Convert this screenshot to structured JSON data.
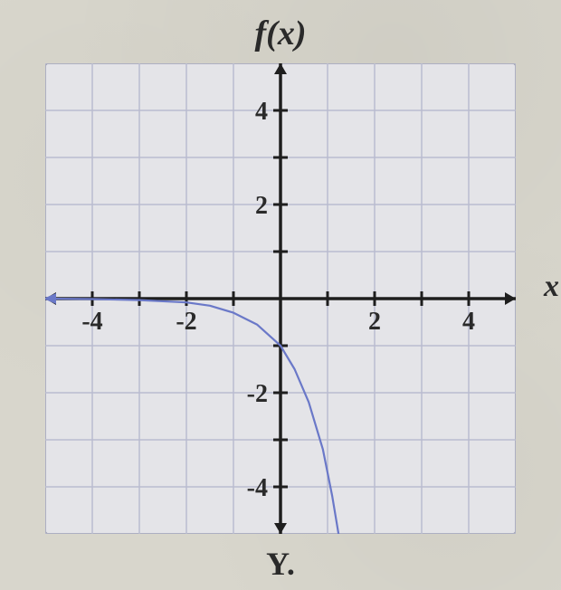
{
  "chart": {
    "type": "line",
    "title": "f(x)",
    "xAxisLabel": "x",
    "bottomLabel": "Y.",
    "xlim": [
      -5,
      5
    ],
    "ylim": [
      -5,
      5
    ],
    "xtick_step": 1,
    "ytick_step": 1,
    "xtick_labels": [
      {
        "v": -4,
        "t": "-4"
      },
      {
        "v": -2,
        "t": "-2"
      },
      {
        "v": 2,
        "t": "2"
      },
      {
        "v": 4,
        "t": "4"
      }
    ],
    "ytick_labels": [
      {
        "v": 4,
        "t": "4"
      },
      {
        "v": 2,
        "t": "2"
      },
      {
        "v": -2,
        "t": "-2"
      },
      {
        "v": -4,
        "t": "-4"
      }
    ],
    "grid_color": "#b9bccf",
    "axis_color": "#1e1e1e",
    "background_color": "#e4e4e8",
    "border_color": "#88899a",
    "curve_color": "#6a78c8",
    "curve_width": 2.2,
    "tick_fontsize": 28,
    "title_fontsize": 38,
    "label_fontsize": 34,
    "curve_points": [
      {
        "x": -5.0,
        "y": 0.0
      },
      {
        "x": -4.0,
        "y": -0.01
      },
      {
        "x": -3.0,
        "y": -0.03
      },
      {
        "x": -2.0,
        "y": -0.08
      },
      {
        "x": -1.5,
        "y": -0.15
      },
      {
        "x": -1.0,
        "y": -0.3
      },
      {
        "x": -0.5,
        "y": -0.55
      },
      {
        "x": 0.0,
        "y": -1.0
      },
      {
        "x": 0.3,
        "y": -1.5
      },
      {
        "x": 0.6,
        "y": -2.2
      },
      {
        "x": 0.9,
        "y": -3.2
      },
      {
        "x": 1.1,
        "y": -4.2
      },
      {
        "x": 1.25,
        "y": -5.1
      }
    ]
  }
}
